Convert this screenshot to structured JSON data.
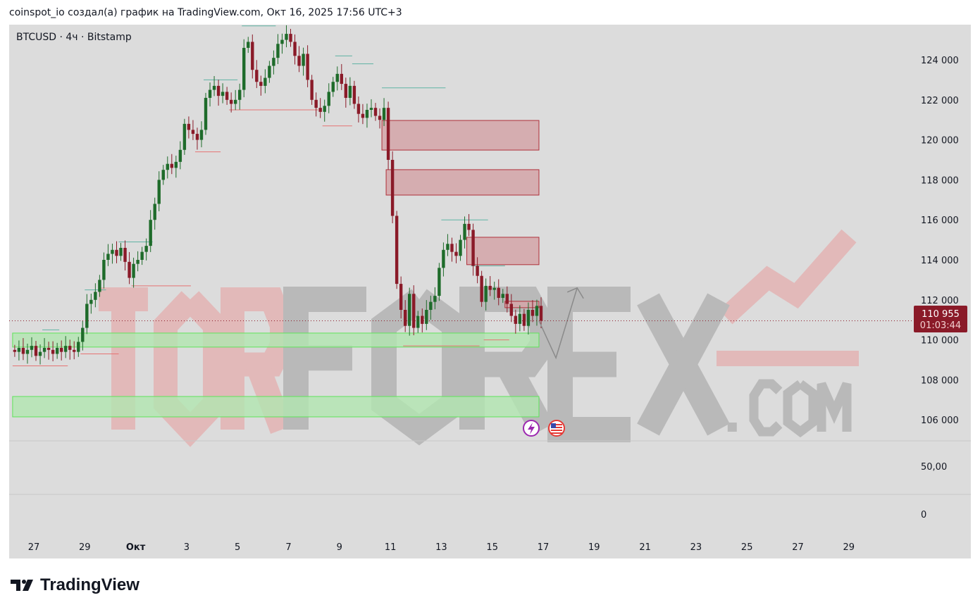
{
  "caption": "coinspot_io создал(а) график на TradingView.com, Окт 16, 2025 17:56 UTC+3",
  "symbol_line": "BTCUSD · 4ч · Bitstamp",
  "brand": "TradingView",
  "watermark": "TORFOREX.COM",
  "colors": {
    "background": "#dcdcdc",
    "up": "#1e6b2a",
    "down": "#8a1a28",
    "supply_zone": "#d4a5a8",
    "demand_zone": "#b2e6b0",
    "demand_border": "#5fe35a",
    "price_label": "#8a1a28"
  },
  "price_label": {
    "price": "110 955",
    "countdown": "01:03:44"
  },
  "indicator_axis": [
    "50,00",
    "0"
  ],
  "icons": [
    "lightning-icon",
    "us-flag-icon"
  ],
  "chart_data": {
    "type": "candlestick",
    "timeframe": "4h",
    "start": "2025-09-26T04:00",
    "ylim": [
      104500,
      125700
    ],
    "y_ticks": [
      106000,
      108000,
      110000,
      112000,
      114000,
      116000,
      118000,
      120000,
      122000,
      124000
    ],
    "y_tick_labels": [
      "106 000",
      "108 000",
      "110 000",
      "112 000",
      "114 000",
      "116 000",
      "118 000",
      "120 000",
      "122 000",
      "124 000"
    ],
    "x_ticks": [
      {
        "date": "2025-09-27",
        "label": "27"
      },
      {
        "date": "2025-09-29",
        "label": "29"
      },
      {
        "date": "2025-10-01",
        "label": "Окт"
      },
      {
        "date": "2025-10-03",
        "label": "3"
      },
      {
        "date": "2025-10-05",
        "label": "5"
      },
      {
        "date": "2025-10-07",
        "label": "7"
      },
      {
        "date": "2025-10-09",
        "label": "9"
      },
      {
        "date": "2025-10-11",
        "label": "11"
      },
      {
        "date": "2025-10-13",
        "label": "13"
      },
      {
        "date": "2025-10-15",
        "label": "15"
      },
      {
        "date": "2025-10-17",
        "label": "17"
      },
      {
        "date": "2025-10-19",
        "label": "19"
      },
      {
        "date": "2025-10-21",
        "label": "21"
      },
      {
        "date": "2025-10-23",
        "label": "23"
      },
      {
        "date": "2025-10-25",
        "label": "25"
      },
      {
        "date": "2025-10-27",
        "label": "27"
      },
      {
        "date": "2025-10-29",
        "label": "29"
      }
    ],
    "closes": [
      109400,
      109600,
      109300,
      109500,
      109700,
      109200,
      109400,
      109600,
      109500,
      109300,
      109600,
      109400,
      109700,
      109500,
      109400,
      109900,
      110600,
      111800,
      112000,
      112400,
      113000,
      114000,
      114300,
      114500,
      114200,
      114600,
      113900,
      113100,
      113800,
      114000,
      114400,
      114700,
      116000,
      116800,
      118000,
      118500,
      118800,
      118600,
      118900,
      119500,
      120800,
      120500,
      120300,
      120000,
      120500,
      122100,
      122500,
      122700,
      122200,
      122400,
      122000,
      121800,
      122000,
      122500,
      124600,
      124900,
      123500,
      122900,
      122700,
      123100,
      123700,
      124100,
      124800,
      125000,
      125300,
      124900,
      124200,
      123700,
      124300,
      123000,
      122000,
      121600,
      121400,
      121700,
      122400,
      122900,
      123300,
      122800,
      122100,
      122700,
      121800,
      121300,
      121100,
      121500,
      121600,
      121200,
      121000,
      121600,
      119000,
      116200,
      112800,
      111500,
      110700,
      112300,
      110600,
      111200,
      110800,
      111500,
      111900,
      112200,
      113600,
      114500,
      114800,
      114400,
      114200,
      115000,
      115800,
      115500,
      113700,
      113200,
      111900,
      112700,
      112500,
      112600,
      112100,
      112300,
      111800,
      111200,
      110800,
      111300,
      110700,
      111500,
      111200,
      111700,
      110955
    ],
    "last_price": 110955,
    "zones": [
      {
        "kind": "supply",
        "from": "2025-10-10T16:00",
        "to": "2025-10-16T20:00",
        "top": 120970,
        "bottom": 119490
      },
      {
        "kind": "supply",
        "from": "2025-10-10T20:00",
        "to": "2025-10-16T20:00",
        "top": 118510,
        "bottom": 117240
      },
      {
        "kind": "supply",
        "from": "2025-10-14T00:00",
        "to": "2025-10-16T20:00",
        "top": 115130,
        "bottom": 113760
      },
      {
        "kind": "supply",
        "from": "2025-10-15T12:00",
        "to": "2025-10-16T20:00",
        "top": 111930,
        "bottom": 111610
      },
      {
        "kind": "demand",
        "from": "2025-09-26T04:00",
        "to": "2025-10-16T20:00",
        "top": 110340,
        "bottom": 109640
      },
      {
        "kind": "demand",
        "from": "2025-09-26T04:00",
        "to": "2025-10-16T20:00",
        "top": 107170,
        "bottom": 106150
      }
    ],
    "levels": [
      {
        "kind": "high",
        "from": "2025-09-27T08:00",
        "to": "2025-09-28T00:00",
        "price": 110500
      },
      {
        "kind": "high",
        "from": "2025-09-29T00:00",
        "to": "2025-09-29T20:00",
        "price": 112500
      },
      {
        "kind": "high",
        "from": "2025-09-30T08:00",
        "to": "2025-10-01T16:00",
        "price": 114900
      },
      {
        "kind": "high",
        "from": "2025-10-03T16:00",
        "to": "2025-10-05T00:00",
        "price": 123000
      },
      {
        "kind": "high",
        "from": "2025-10-05T04:00",
        "to": "2025-10-06T12:00",
        "price": 125700
      },
      {
        "kind": "high",
        "from": "2025-10-08T20:00",
        "to": "2025-10-09T12:00",
        "price": 124200
      },
      {
        "kind": "high",
        "from": "2025-10-09T12:00",
        "to": "2025-10-10T08:00",
        "price": 123800
      },
      {
        "kind": "high",
        "from": "2025-10-10T16:00",
        "to": "2025-10-13T04:00",
        "price": 122600
      },
      {
        "kind": "high",
        "from": "2025-10-13T00:00",
        "to": "2025-10-14T20:00",
        "price": 116000
      },
      {
        "kind": "high",
        "from": "2025-10-14T04:00",
        "to": "2025-10-15T12:00",
        "price": 113700
      },
      {
        "kind": "low",
        "from": "2025-09-26T04:00",
        "to": "2025-09-28T08:00",
        "price": 108700
      },
      {
        "kind": "low",
        "from": "2025-09-28T20:00",
        "to": "2025-09-30T08:00",
        "price": 109300
      },
      {
        "kind": "low",
        "from": "2025-09-30T20:00",
        "to": "2025-10-03T04:00",
        "price": 112700
      },
      {
        "kind": "low",
        "from": "2025-10-03T08:00",
        "to": "2025-10-04T08:00",
        "price": 119400
      },
      {
        "kind": "low",
        "from": "2025-10-04T16:00",
        "to": "2025-10-08T04:00",
        "price": 121500
      },
      {
        "kind": "low",
        "from": "2025-10-08T08:00",
        "to": "2025-10-09T12:00",
        "price": 120700
      },
      {
        "kind": "low",
        "from": "2025-10-11T12:00",
        "to": "2025-10-14T12:00",
        "price": 109700
      },
      {
        "kind": "low",
        "from": "2025-10-14T16:00",
        "to": "2025-10-15T16:00",
        "price": 110000
      }
    ],
    "projection": [
      {
        "time": "2025-10-16T20:00",
        "price": 110955
      },
      {
        "time": "2025-10-17T12:00",
        "price": 109100
      },
      {
        "time": "2025-10-18T08:00",
        "price": 112600
      }
    ]
  }
}
